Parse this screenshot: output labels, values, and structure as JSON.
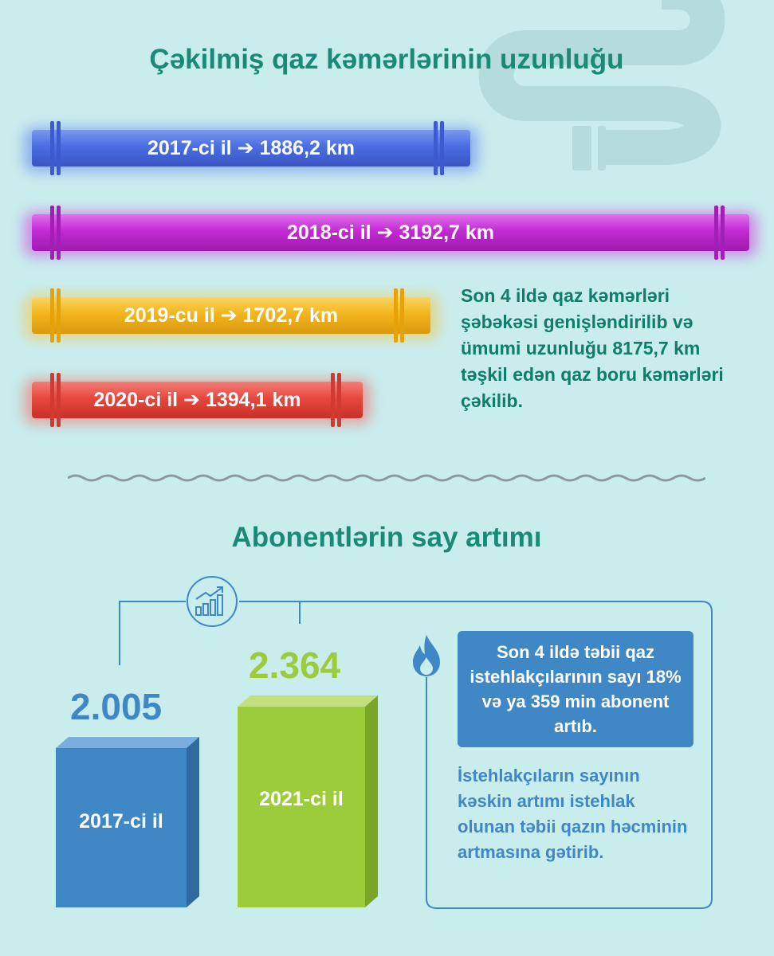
{
  "pipelines": {
    "title": "Çəkilmiş qaz kəmərlərinin uzunluğu",
    "items": [
      {
        "label": "2017-ci il ➔ 1886,2 km",
        "km": 1886.2,
        "color": "#4a6ee0"
      },
      {
        "label": "2018-ci il ➔ 3192,7 km",
        "km": 3192.7,
        "color": "#c22ad2"
      },
      {
        "label": "2019-cu il ➔ 1702,7 km",
        "km": 1702.7,
        "color": "#f2b51c"
      },
      {
        "label": "2020-ci il ➔ 1394,1 km",
        "km": 1394.1,
        "color": "#e6483e"
      }
    ],
    "note": "Son 4 ildə qaz kəmərləri şəbəkəsi genişləndirilib və ümumi uzunluğu 8175,7 km təşkil edən qaz boru kəmərləri çəkilib."
  },
  "subscribers": {
    "title": "Abonentlərin say artımı",
    "bars": [
      {
        "year": "2017-ci il",
        "value": "2.005",
        "color": "#3f87c5"
      },
      {
        "year": "2021-ci il",
        "value": "2.364",
        "color": "#9ccb3b"
      }
    ],
    "highlight": "Son 4 ildə təbii qaz istehlakçılarının sayı 18% və ya 359 min abonent artıb.",
    "note": "İstehlakçıların sayının kəskin artımı istehlak olunan təbii qazın həcminin artmasına gətirib."
  },
  "icons": [
    "growth-chart-icon",
    "gas-flame-icon",
    "pipe-decoration-icon"
  ]
}
